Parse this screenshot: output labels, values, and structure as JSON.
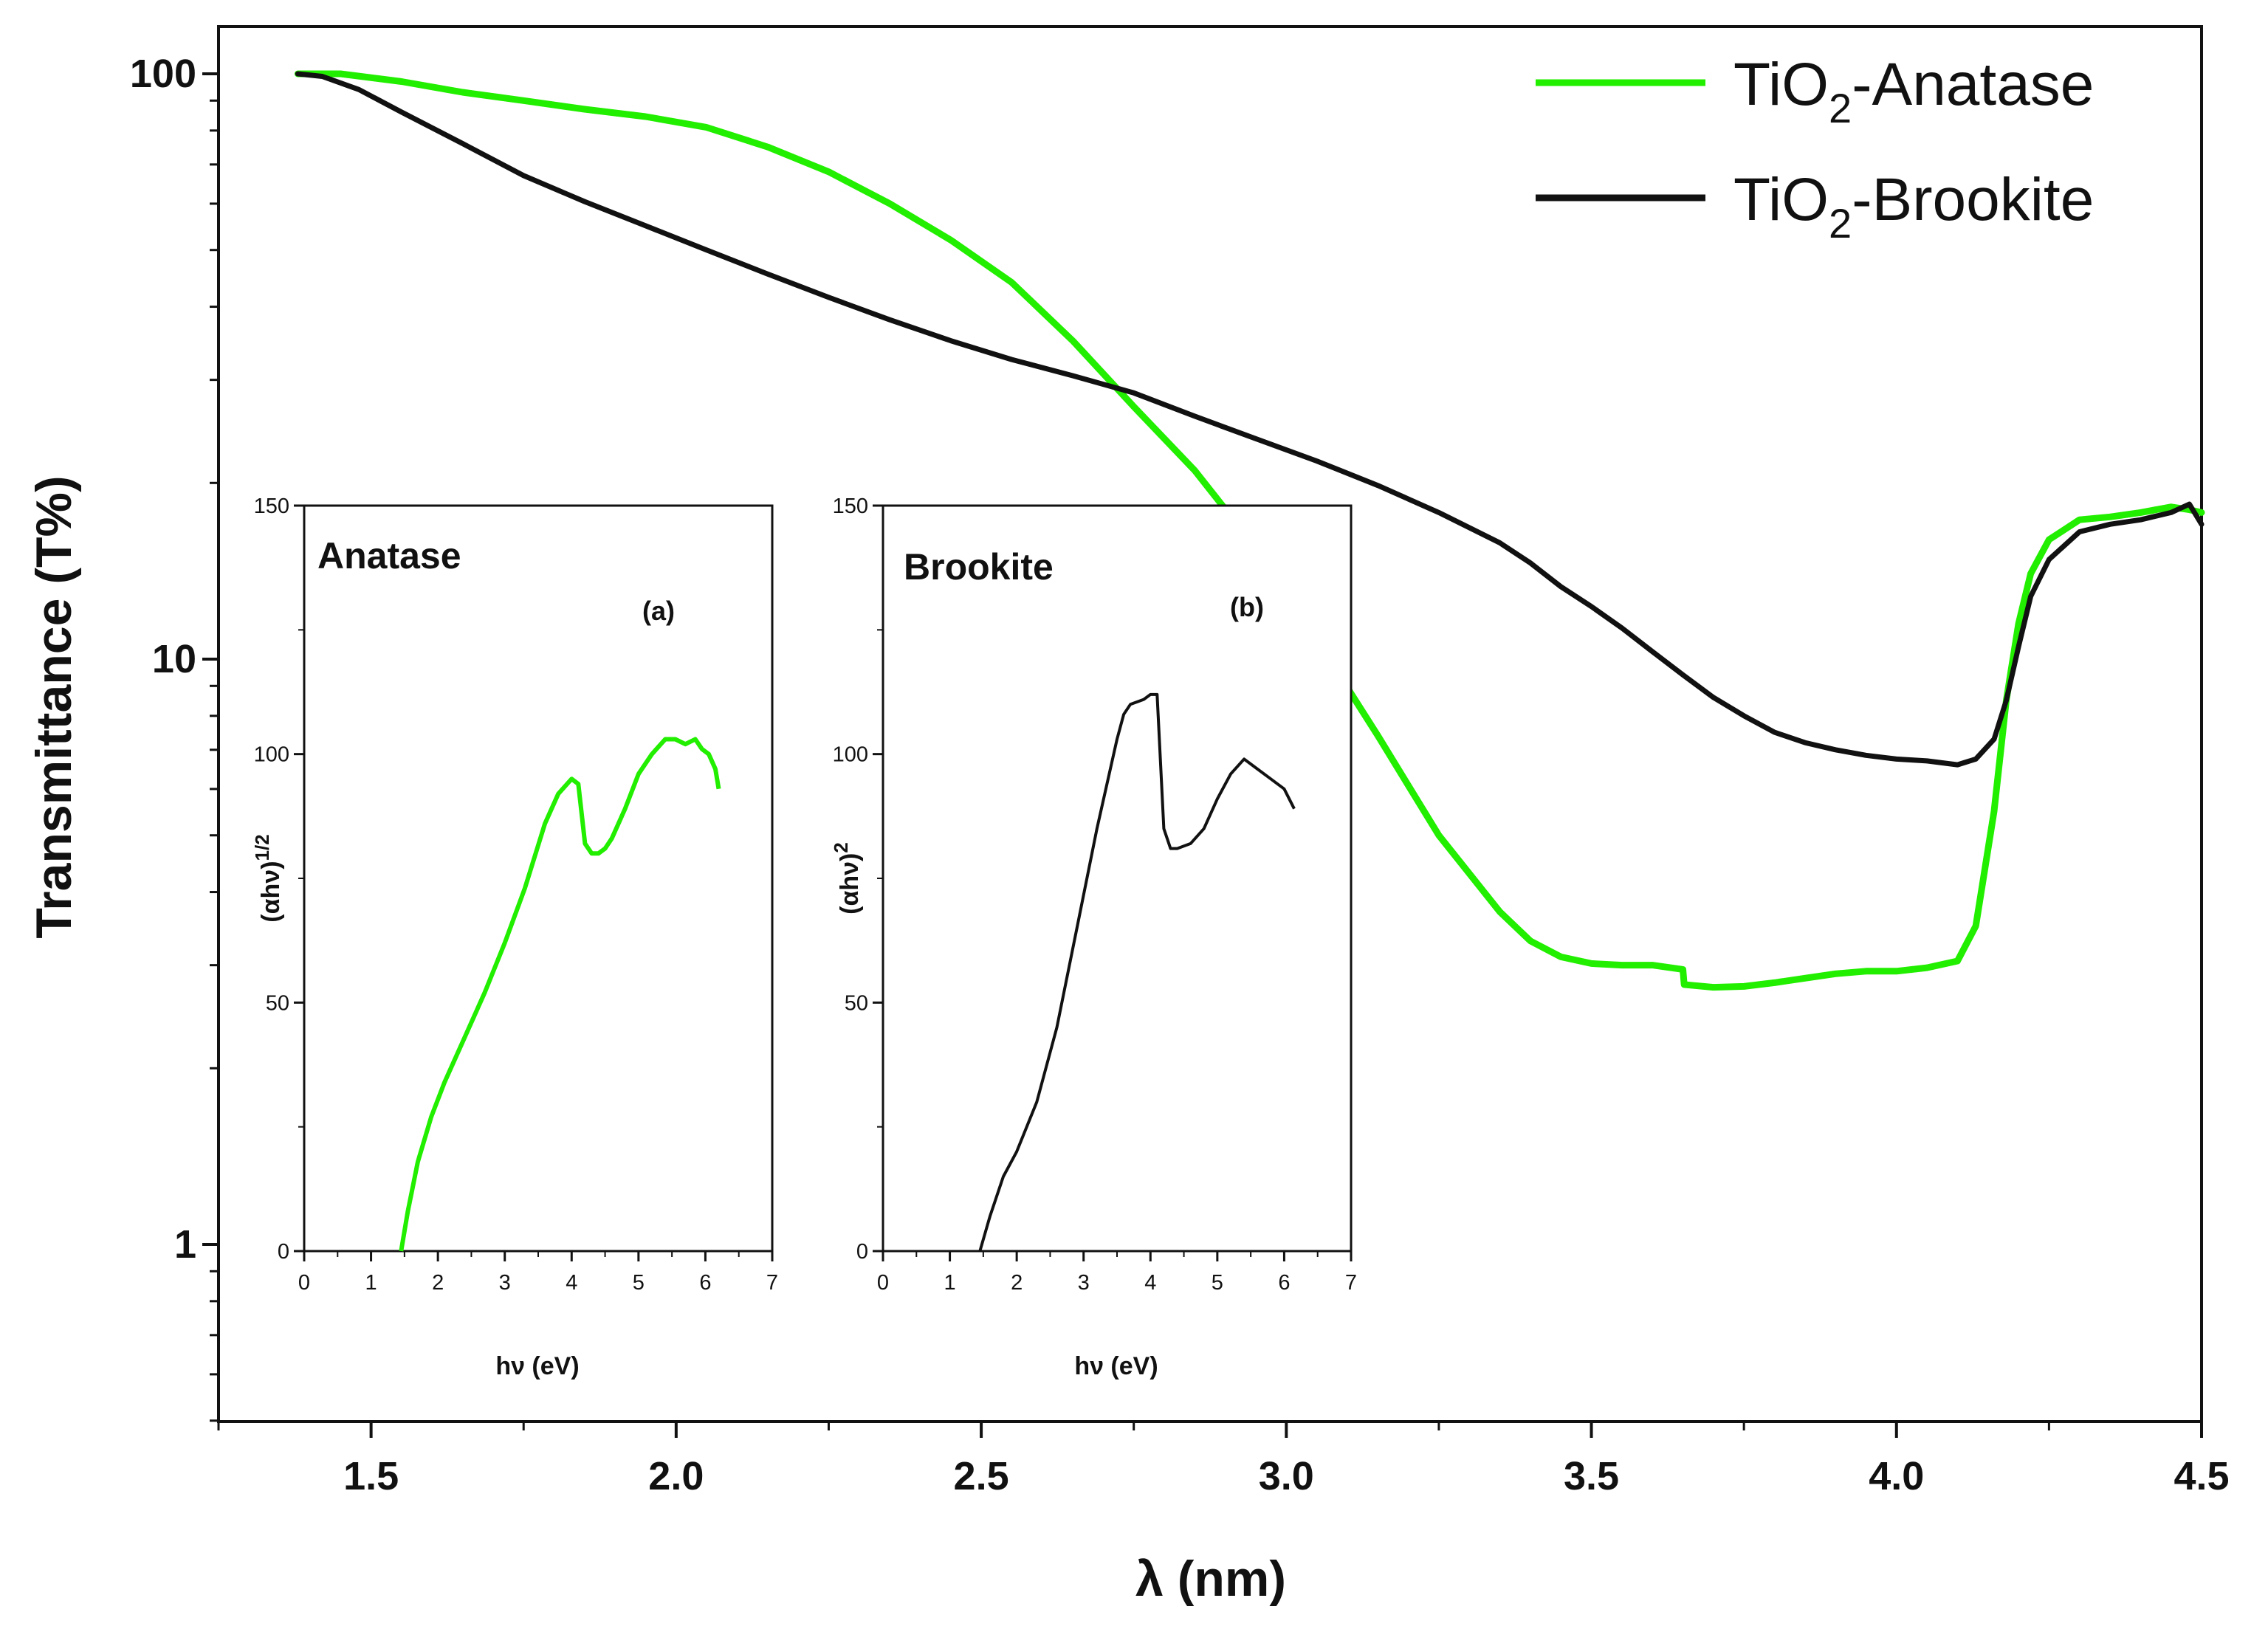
{
  "chart_data": {
    "type": "line",
    "title": "",
    "xlabel": "λ (nm)",
    "ylabel": "Transmittance (T%)",
    "xlim": [
      1.25,
      4.5
    ],
    "ylim_log": [
      0.5,
      100
    ],
    "yscale": "log",
    "x_ticks": [
      "1.5",
      "2.0",
      "2.5",
      "3.0",
      "3.5",
      "4.0",
      "4.5"
    ],
    "x_tick_values": [
      1.5,
      2.0,
      2.5,
      3.0,
      3.5,
      4.0,
      4.5
    ],
    "y_ticks": [
      "1",
      "10",
      "100"
    ],
    "y_tick_values": [
      1,
      10,
      100
    ],
    "legend_position": "top-right",
    "legend": [
      {
        "prefix": "TiO",
        "sub": "2",
        "suffix": "-Anatase",
        "color": "#22ee00"
      },
      {
        "prefix": "TiO",
        "sub": "2",
        "suffix": "-Brookite",
        "color": "#111111"
      }
    ],
    "series": [
      {
        "name": "TiO2-Anatase",
        "color": "#22ee00",
        "x": [
          1.38,
          1.45,
          1.55,
          1.65,
          1.75,
          1.85,
          1.95,
          2.05,
          2.15,
          2.25,
          2.35,
          2.45,
          2.55,
          2.65,
          2.75,
          2.85,
          2.95,
          3.05,
          3.15,
          3.25,
          3.35,
          3.4,
          3.45,
          3.5,
          3.55,
          3.6,
          3.65,
          3.652,
          3.7,
          3.75,
          3.8,
          3.85,
          3.9,
          3.95,
          4.0,
          4.05,
          4.1,
          4.13,
          4.16,
          4.18,
          4.2,
          4.22,
          4.25,
          4.3,
          4.35,
          4.4,
          4.45,
          4.48,
          4.5
        ],
        "values": [
          100,
          100,
          97,
          93,
          90,
          87,
          84.5,
          81,
          75,
          68,
          60,
          52,
          44,
          35,
          27,
          21,
          15.5,
          10.8,
          7.4,
          5.0,
          3.7,
          3.3,
          3.1,
          3.02,
          3.0,
          3.0,
          2.95,
          2.78,
          2.75,
          2.76,
          2.8,
          2.85,
          2.9,
          2.93,
          2.93,
          2.97,
          3.05,
          3.5,
          5.5,
          8.5,
          11.5,
          14,
          16,
          17.3,
          17.5,
          17.8,
          18.2,
          18.0,
          17.8
        ]
      },
      {
        "name": "TiO2-Brookite",
        "color": "#111111",
        "x": [
          1.38,
          1.42,
          1.48,
          1.55,
          1.65,
          1.75,
          1.85,
          1.95,
          2.05,
          2.15,
          2.25,
          2.35,
          2.45,
          2.55,
          2.65,
          2.75,
          2.85,
          2.95,
          3.05,
          3.15,
          3.25,
          3.35,
          3.4,
          3.45,
          3.5,
          3.55,
          3.6,
          3.65,
          3.7,
          3.75,
          3.8,
          3.85,
          3.9,
          3.95,
          4.0,
          4.05,
          4.1,
          4.13,
          4.16,
          4.18,
          4.2,
          4.22,
          4.25,
          4.3,
          4.35,
          4.4,
          4.45,
          4.48,
          4.5
        ],
        "values": [
          100,
          99,
          94,
          86,
          76,
          67,
          60.5,
          55,
          50,
          45.5,
          41.5,
          38,
          35,
          32.5,
          30.5,
          28.5,
          26,
          23.8,
          21.8,
          19.8,
          17.8,
          15.8,
          14.6,
          13.3,
          12.3,
          11.3,
          10.3,
          9.4,
          8.6,
          8.0,
          7.5,
          7.2,
          7.0,
          6.85,
          6.75,
          6.7,
          6.6,
          6.75,
          7.3,
          8.5,
          10.5,
          12.8,
          14.8,
          16.5,
          17.0,
          17.3,
          17.8,
          18.4,
          17.0
        ]
      }
    ],
    "insets": [
      {
        "title": "Anatase",
        "panel": "(a)",
        "xlabel": "hν (eV)",
        "ylabel": "(αhν)",
        "ylabel_sup": "1/2",
        "xlim": [
          0,
          7
        ],
        "ylim": [
          0,
          150
        ],
        "x_ticks": [
          "0",
          "1",
          "2",
          "3",
          "4",
          "5",
          "6",
          "7"
        ],
        "x_tick_values": [
          0,
          1,
          2,
          3,
          4,
          5,
          6,
          7
        ],
        "y_ticks": [
          "0",
          "50",
          "100",
          "150"
        ],
        "y_tick_values": [
          0,
          50,
          100,
          150
        ],
        "color": "#22ee00",
        "x": [
          1.45,
          1.55,
          1.7,
          1.9,
          2.1,
          2.4,
          2.7,
          3.0,
          3.3,
          3.6,
          3.8,
          4.0,
          4.1,
          4.2,
          4.3,
          4.4,
          4.5,
          4.6,
          4.8,
          5.0,
          5.2,
          5.4,
          5.55,
          5.7,
          5.85,
          5.95,
          6.05,
          6.15,
          6.2
        ],
        "values": [
          0,
          8,
          18,
          27,
          34,
          43,
          52,
          62,
          73,
          86,
          92,
          95,
          94,
          82,
          80,
          80,
          81,
          83,
          89,
          96,
          100,
          103,
          103,
          102,
          103,
          101,
          100,
          97,
          93
        ]
      },
      {
        "title": "Brookite",
        "panel": "(b)",
        "xlabel": "hν (eV)",
        "ylabel": "(αhν)",
        "ylabel_sup": "2",
        "xlim": [
          0,
          7
        ],
        "ylim": [
          0,
          150
        ],
        "x_ticks": [
          "0",
          "1",
          "2",
          "3",
          "4",
          "5",
          "6",
          "7"
        ],
        "x_tick_values": [
          0,
          1,
          2,
          3,
          4,
          5,
          6,
          7
        ],
        "y_ticks": [
          "0",
          "50",
          "100",
          "150"
        ],
        "y_tick_values": [
          0,
          50,
          100,
          150
        ],
        "color": "#111111",
        "x": [
          1.45,
          1.6,
          1.8,
          2.0,
          2.3,
          2.6,
          2.9,
          3.2,
          3.5,
          3.6,
          3.7,
          3.9,
          4.0,
          4.1,
          4.2,
          4.3,
          4.4,
          4.6,
          4.8,
          5.0,
          5.2,
          5.4,
          5.6,
          5.8,
          6.0,
          6.15
        ],
        "values": [
          0,
          7,
          15,
          20,
          30,
          45,
          65,
          85,
          103,
          108,
          110,
          111,
          112,
          112,
          85,
          81,
          81,
          82,
          85,
          91,
          96,
          99,
          97,
          95,
          93,
          89
        ]
      }
    ]
  }
}
